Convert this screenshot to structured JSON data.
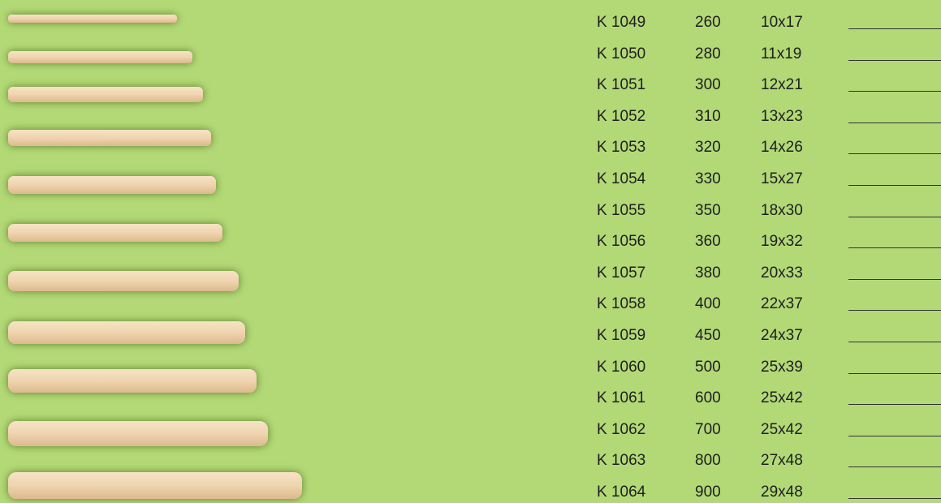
{
  "table": {
    "rows": [
      [
        "K 1049",
        "260",
        "10x17"
      ],
      [
        "K 1050",
        "280",
        "11x19"
      ],
      [
        "K 1051",
        "300",
        "12x21"
      ],
      [
        "K 1052",
        "310",
        "13x23"
      ],
      [
        "K 1053",
        "320",
        "14x26"
      ],
      [
        "K 1054",
        "330",
        "15x27"
      ],
      [
        "K 1055",
        "350",
        "18x30"
      ],
      [
        "K 1056",
        "360",
        "19x32"
      ],
      [
        "K 1057",
        "380",
        "20x33"
      ],
      [
        "K 1058",
        "400",
        "22x37"
      ],
      [
        "K 1059",
        "450",
        "24x37"
      ],
      [
        "K 1060",
        "500",
        "25x39"
      ],
      [
        "K 1061",
        "600",
        "25x42"
      ],
      [
        "K 1062",
        "700",
        "25x42"
      ],
      [
        "K 1063",
        "800",
        "27x48"
      ],
      [
        "K 1064",
        "900",
        "29x48"
      ]
    ]
  }
}
